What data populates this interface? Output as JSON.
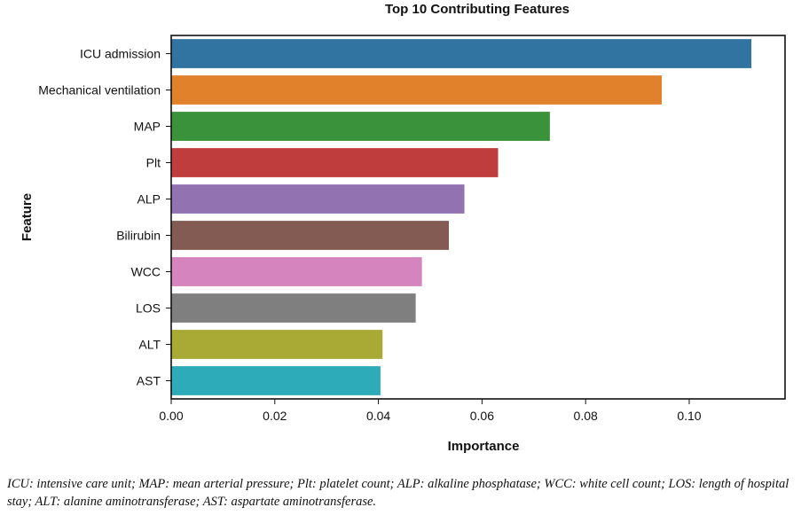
{
  "chart_data": {
    "type": "bar",
    "orientation": "horizontal",
    "title": "Top 10 Contributing Features",
    "xlabel": "Importance",
    "ylabel": "Feature",
    "xlim": [
      0,
      0.1185
    ],
    "xticks": [
      0.0,
      0.02,
      0.04,
      0.06,
      0.08,
      0.1
    ],
    "xtick_labels": [
      "0.00",
      "0.02",
      "0.04",
      "0.06",
      "0.08",
      "0.10"
    ],
    "grid": false,
    "categories": [
      "ICU admission",
      "Mechanical ventilation",
      "MAP",
      "Plt",
      "ALP",
      "Bilirubin",
      "WCC",
      "LOS",
      "ALT",
      "AST"
    ],
    "values": [
      0.112,
      0.0947,
      0.0731,
      0.0631,
      0.0566,
      0.0536,
      0.0484,
      0.0472,
      0.0408,
      0.0404
    ],
    "colors": [
      "#3274a1",
      "#e1812c",
      "#3a923a",
      "#c03d3e",
      "#9372b2",
      "#845b53",
      "#d684bd",
      "#7f7f7f",
      "#a9aa35",
      "#2eabb8"
    ]
  },
  "caption": "ICU: intensive care unit; MAP: mean arterial pressure; Plt: platelet count; ALP: alkaline phosphatase; WCC: white cell count; LOS: length of hospital stay; ALT: alanine aminotransferase; AST: aspartate aminotransferase."
}
